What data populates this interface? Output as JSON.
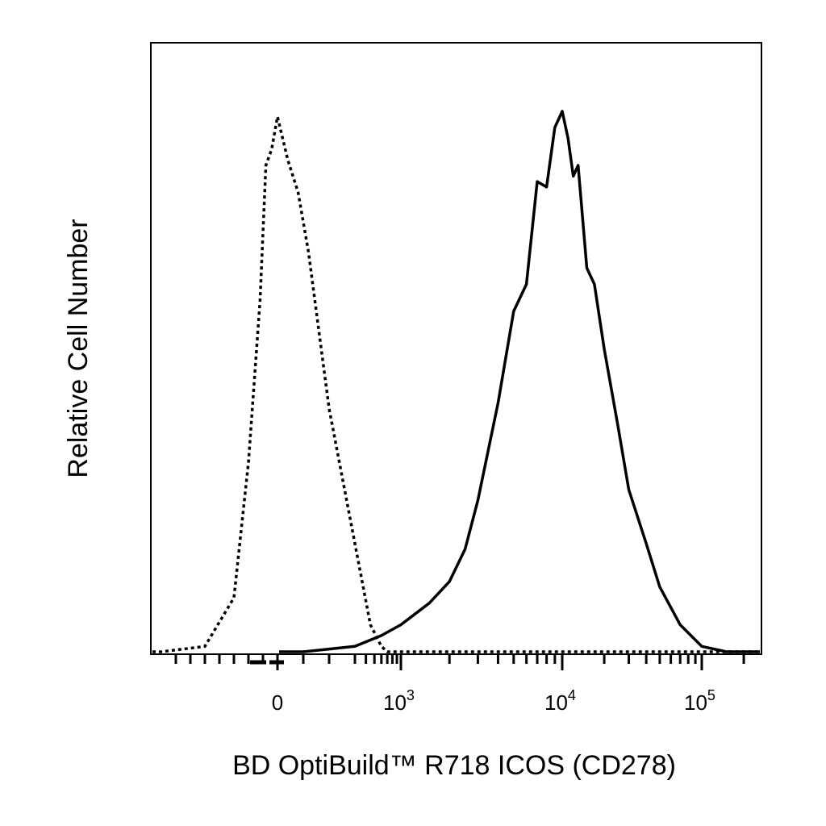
{
  "chart_data": {
    "type": "line",
    "title": "",
    "xlabel": "BD OptiBuild™ R718 ICOS (CD278)",
    "ylabel": "Relative Cell Number",
    "x_scale": "biexponential",
    "grid": false,
    "legend": "none",
    "x_ticks": [
      {
        "value": 0,
        "label": "0",
        "base": "0",
        "exp": ""
      },
      {
        "value": 1000,
        "label": "10^3",
        "base": "10",
        "exp": "3"
      },
      {
        "value": 10000,
        "label": "10^4",
        "base": "10",
        "exp": "4"
      },
      {
        "value": 100000,
        "label": "10^5",
        "base": "10",
        "exp": "5"
      }
    ],
    "y_range": [
      0,
      1
    ],
    "series": [
      {
        "style": "dotted",
        "color": "#000000",
        "x": [
          -800,
          -500,
          -300,
          -200,
          -120,
          -80,
          -40,
          0,
          40,
          80,
          120,
          200,
          300,
          450,
          600,
          700
        ],
        "y": [
          0.0,
          0.01,
          0.1,
          0.35,
          0.65,
          0.9,
          0.93,
          0.99,
          0.91,
          0.85,
          0.74,
          0.45,
          0.2,
          0.05,
          0.01,
          0.0
        ]
      },
      {
        "style": "solid",
        "color": "#000000",
        "x": [
          100,
          300,
          600,
          1000,
          1500,
          2000,
          2500,
          3000,
          4000,
          5000,
          6000,
          7000,
          8000,
          9000,
          10000,
          11000,
          12000,
          13000,
          15000,
          17000,
          20000,
          25000,
          30000,
          40000,
          50000,
          70000,
          100000,
          150000
        ],
        "y": [
          0.0,
          0.01,
          0.03,
          0.05,
          0.09,
          0.13,
          0.19,
          0.28,
          0.46,
          0.63,
          0.68,
          0.87,
          0.86,
          0.97,
          1.0,
          0.95,
          0.88,
          0.9,
          0.71,
          0.68,
          0.56,
          0.42,
          0.3,
          0.2,
          0.12,
          0.05,
          0.01,
          0.0
        ]
      }
    ]
  }
}
